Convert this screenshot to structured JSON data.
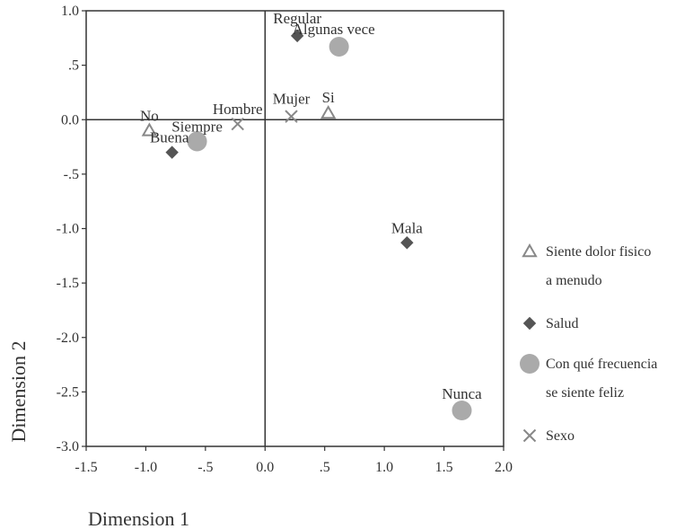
{
  "chart_data": {
    "type": "scatter",
    "xlabel": "Dimension 1",
    "ylabel": "Dimension 2",
    "xlim": [
      -1.5,
      2.0
    ],
    "ylim": [
      -3.0,
      1.0
    ],
    "xticks": [
      -1.5,
      -1.0,
      -0.5,
      0.0,
      0.5,
      1.0,
      1.5,
      2.0
    ],
    "xtick_labels": [
      "-1.5",
      "-1.0",
      "-.5",
      "0.0",
      ".5",
      "1.0",
      "1.5",
      "2.0"
    ],
    "yticks": [
      1.0,
      0.5,
      0.0,
      -0.5,
      -1.0,
      -1.5,
      -2.0,
      -2.5,
      -3.0
    ],
    "ytick_labels": [
      "1.0",
      ".5",
      "0.0",
      "-.5",
      "-1.0",
      "-1.5",
      "-2.0",
      "-2.5",
      "-3.0"
    ],
    "grid": false,
    "reference_lines": {
      "x": 0,
      "y": 0
    },
    "legend_position": "right",
    "series": [
      {
        "name": "Siente dolor fisico a menudo",
        "legend_lines": [
          "Siente dolor fisico",
          "a menudo"
        ],
        "marker": "triangle",
        "color": "#888888",
        "points": [
          {
            "label": "No",
            "x": -0.97,
            "y": -0.1
          },
          {
            "label": "Si",
            "x": 0.53,
            "y": 0.06
          }
        ]
      },
      {
        "name": "Salud",
        "legend_lines": [
          "Salud"
        ],
        "marker": "diamond",
        "color": "#555555",
        "points": [
          {
            "label": "Buena",
            "x": -0.78,
            "y": -0.3
          },
          {
            "label": "Regular",
            "x": 0.27,
            "y": 0.77
          },
          {
            "label": "Mala",
            "x": 1.19,
            "y": -1.13
          }
        ]
      },
      {
        "name": "Con qué frecuencia se siente feliz",
        "legend_lines": [
          "Con qué frecuencia",
          "se siente feliz"
        ],
        "marker": "circle",
        "color": "#aaaaaa",
        "points": [
          {
            "label": "Siempre",
            "x": -0.57,
            "y": -0.2
          },
          {
            "label": "Algunas vece",
            "x": 0.62,
            "y": 0.67
          },
          {
            "label": "Nunca",
            "x": 1.65,
            "y": -2.67
          }
        ]
      },
      {
        "name": "Sexo",
        "legend_lines": [
          "Sexo"
        ],
        "marker": "x",
        "color": "#888888",
        "points": [
          {
            "label": "Hombre",
            "x": -0.23,
            "y": -0.04
          },
          {
            "label": "Mujer",
            "x": 0.22,
            "y": 0.03
          }
        ]
      }
    ]
  }
}
